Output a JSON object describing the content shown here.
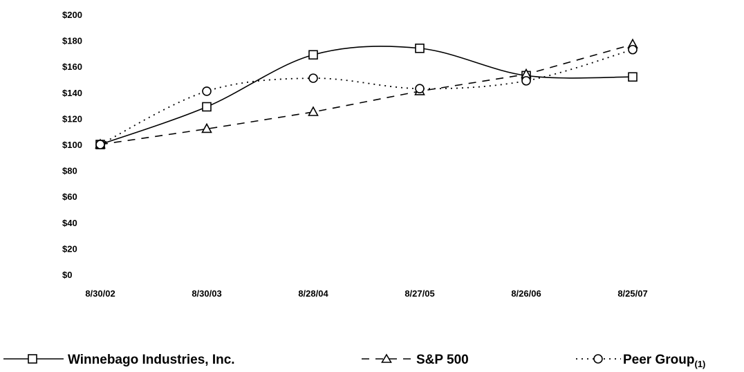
{
  "chart_data": {
    "type": "line",
    "categories": [
      "8/30/02",
      "8/30/03",
      "8/28/04",
      "8/27/05",
      "8/26/06",
      "8/25/07"
    ],
    "y_tick_labels": [
      "$0",
      "$20",
      "$40",
      "$60",
      "$80",
      "$100",
      "$120",
      "$140",
      "$160",
      "$180",
      "$200"
    ],
    "ylim": [
      0,
      200
    ],
    "grid": false,
    "legend_position": "bottom",
    "series": [
      {
        "name": "Winnebago Industries, Inc.",
        "values": [
          100,
          129,
          169,
          174,
          153,
          152
        ],
        "line_style": "solid",
        "marker": "square",
        "smooth": true
      },
      {
        "name": "S&P 500",
        "values": [
          100,
          112,
          125,
          141,
          154,
          177
        ],
        "line_style": "dashed",
        "marker": "triangle",
        "smooth": false
      },
      {
        "name": "Peer Group",
        "name_subscript": "(1)",
        "values": [
          100,
          141,
          151,
          143,
          149,
          173
        ],
        "line_style": "dotted",
        "marker": "circle",
        "smooth": true
      }
    ],
    "color": "#000000"
  }
}
